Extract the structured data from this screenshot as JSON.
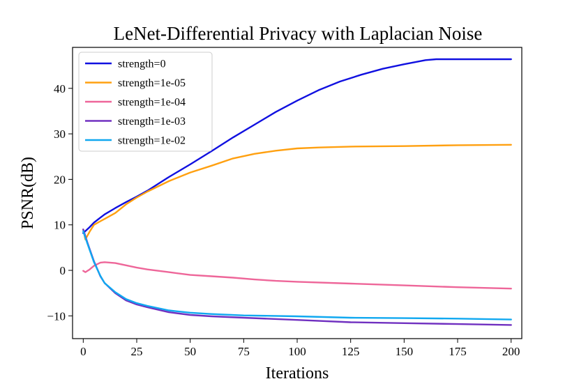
{
  "chart_data": {
    "type": "line",
    "title": "LeNet-Differential Privacy with Laplacian Noise",
    "xlabel": "Iterations",
    "ylabel": "PSNR(dB)",
    "xlim": [
      -5,
      205
    ],
    "ylim": [
      -15,
      49
    ],
    "xticks": [
      0,
      25,
      50,
      75,
      100,
      125,
      150,
      175,
      200
    ],
    "yticks": [
      -10,
      0,
      10,
      20,
      30,
      40
    ],
    "ytick_labels": [
      "−10",
      "0",
      "10",
      "20",
      "30",
      "40"
    ],
    "grid": false,
    "legend_position": "top-left",
    "series": [
      {
        "name": "strength=0",
        "color": "#1010e0",
        "points": [
          [
            0,
            8.2
          ],
          [
            3,
            9.5
          ],
          [
            5,
            10.5
          ],
          [
            8,
            11.6
          ],
          [
            10,
            12.3
          ],
          [
            15,
            13.7
          ],
          [
            20,
            15.0
          ],
          [
            25,
            16.2
          ],
          [
            30,
            17.5
          ],
          [
            40,
            20.5
          ],
          [
            50,
            23.3
          ],
          [
            60,
            26.2
          ],
          [
            70,
            29.2
          ],
          [
            80,
            32.0
          ],
          [
            90,
            34.8
          ],
          [
            100,
            37.3
          ],
          [
            110,
            39.6
          ],
          [
            120,
            41.5
          ],
          [
            130,
            43.0
          ],
          [
            140,
            44.3
          ],
          [
            150,
            45.3
          ],
          [
            160,
            46.2
          ],
          [
            165,
            46.4
          ],
          [
            180,
            46.4
          ],
          [
            200,
            46.4
          ]
        ]
      },
      {
        "name": "strength=1e-05",
        "color": "#ffa010",
        "points": [
          [
            0,
            9.0
          ],
          [
            1,
            6.8
          ],
          [
            3,
            8.5
          ],
          [
            5,
            10.0
          ],
          [
            8,
            10.8
          ],
          [
            10,
            11.3
          ],
          [
            15,
            12.6
          ],
          [
            20,
            14.5
          ],
          [
            25,
            16.0
          ],
          [
            30,
            17.3
          ],
          [
            40,
            19.6
          ],
          [
            50,
            21.5
          ],
          [
            60,
            23.0
          ],
          [
            70,
            24.6
          ],
          [
            80,
            25.6
          ],
          [
            90,
            26.3
          ],
          [
            100,
            26.8
          ],
          [
            110,
            27.0
          ],
          [
            125,
            27.2
          ],
          [
            150,
            27.3
          ],
          [
            175,
            27.5
          ],
          [
            200,
            27.6
          ]
        ]
      },
      {
        "name": "strength=1e-04",
        "color": "#ee6699",
        "points": [
          [
            0,
            -0.1
          ],
          [
            1,
            -0.4
          ],
          [
            3,
            0.2
          ],
          [
            5,
            1.0
          ],
          [
            8,
            1.7
          ],
          [
            10,
            1.8
          ],
          [
            15,
            1.6
          ],
          [
            20,
            1.1
          ],
          [
            25,
            0.6
          ],
          [
            30,
            0.2
          ],
          [
            40,
            -0.4
          ],
          [
            50,
            -1.0
          ],
          [
            60,
            -1.3
          ],
          [
            70,
            -1.6
          ],
          [
            80,
            -2.0
          ],
          [
            90,
            -2.3
          ],
          [
            100,
            -2.5
          ],
          [
            125,
            -2.9
          ],
          [
            150,
            -3.3
          ],
          [
            175,
            -3.7
          ],
          [
            200,
            -4.0
          ]
        ]
      },
      {
        "name": "strength=1e-03",
        "color": "#7030c0",
        "points": [
          [
            0,
            9.0
          ],
          [
            2,
            6.0
          ],
          [
            5,
            2.0
          ],
          [
            8,
            -1.3
          ],
          [
            10,
            -2.8
          ],
          [
            15,
            -5.0
          ],
          [
            20,
            -6.6
          ],
          [
            25,
            -7.5
          ],
          [
            30,
            -8.1
          ],
          [
            40,
            -9.2
          ],
          [
            50,
            -9.8
          ],
          [
            60,
            -10.1
          ],
          [
            75,
            -10.4
          ],
          [
            100,
            -10.9
          ],
          [
            125,
            -11.4
          ],
          [
            150,
            -11.6
          ],
          [
            175,
            -11.8
          ],
          [
            200,
            -12.0
          ]
        ]
      },
      {
        "name": "strength=1e-02",
        "color": "#10a8f0",
        "points": [
          [
            0,
            8.6
          ],
          [
            2,
            5.8
          ],
          [
            5,
            1.8
          ],
          [
            8,
            -1.2
          ],
          [
            10,
            -2.8
          ],
          [
            15,
            -4.8
          ],
          [
            20,
            -6.3
          ],
          [
            25,
            -7.2
          ],
          [
            30,
            -7.8
          ],
          [
            40,
            -8.8
          ],
          [
            50,
            -9.3
          ],
          [
            60,
            -9.6
          ],
          [
            75,
            -9.9
          ],
          [
            100,
            -10.1
          ],
          [
            125,
            -10.4
          ],
          [
            150,
            -10.5
          ],
          [
            175,
            -10.6
          ],
          [
            200,
            -10.8
          ]
        ]
      }
    ]
  }
}
